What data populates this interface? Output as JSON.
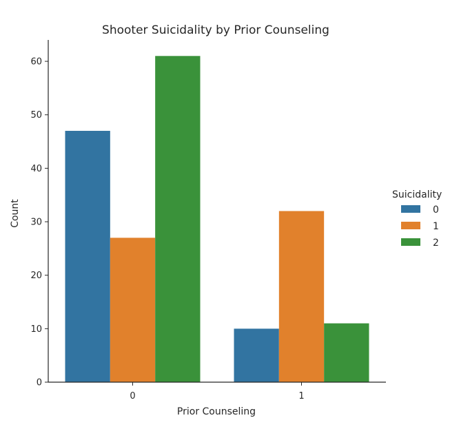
{
  "chart_data": {
    "type": "bar",
    "title": "Shooter Suicidality by Prior Counseling",
    "xlabel": "Prior Counseling",
    "ylabel": "Count",
    "categories": [
      "0",
      "1"
    ],
    "series": [
      {
        "name": "0",
        "values": [
          47,
          10
        ],
        "color": "#3274a1"
      },
      {
        "name": "1",
        "values": [
          27,
          32
        ],
        "color": "#e1812c"
      },
      {
        "name": "2",
        "values": [
          61,
          11
        ],
        "color": "#3a923a"
      }
    ],
    "ylim": [
      0,
      64
    ],
    "yticks": [
      0,
      10,
      20,
      30,
      40,
      50,
      60
    ],
    "legend": {
      "title": "Suicidality",
      "placement": "right"
    },
    "grid": false
  }
}
